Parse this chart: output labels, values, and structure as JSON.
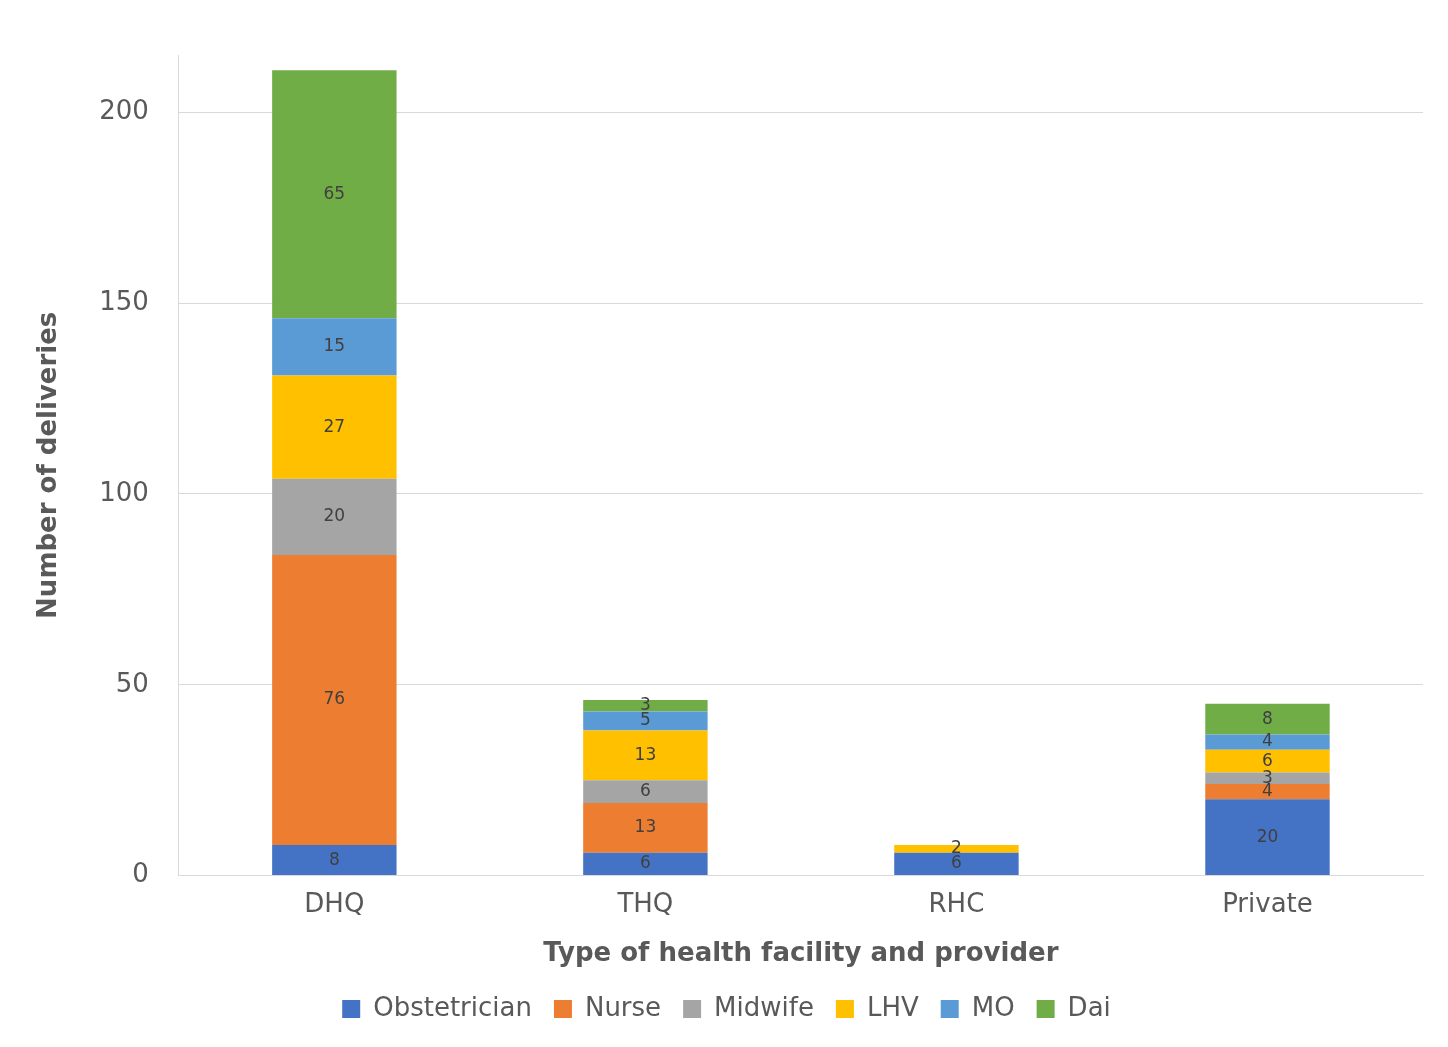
{
  "chart_data": {
    "type": "bar",
    "stacked": true,
    "xlabel": "Type of health facility and provider",
    "ylabel": "Number of deliveries",
    "categories": [
      "DHQ",
      "THQ",
      "RHC",
      "Private"
    ],
    "series": [
      {
        "name": "Obstetrician",
        "color": "#4472c4",
        "values": [
          8,
          6,
          6,
          20
        ]
      },
      {
        "name": "Nurse",
        "color": "#ed7d31",
        "values": [
          76,
          13,
          null,
          4
        ]
      },
      {
        "name": "Midwife",
        "color": "#a5a5a5",
        "values": [
          20,
          6,
          null,
          3
        ]
      },
      {
        "name": "LHV",
        "color": "#ffc000",
        "values": [
          27,
          13,
          2,
          6
        ]
      },
      {
        "name": "MO",
        "color": "#5b9bd5",
        "values": [
          15,
          5,
          null,
          4
        ]
      },
      {
        "name": "Dai",
        "color": "#70ad47",
        "values": [
          65,
          3,
          null,
          8
        ]
      }
    ],
    "ylim": [
      0,
      215
    ],
    "yticks": [
      0,
      50,
      100,
      150,
      200
    ],
    "grid": "y",
    "legend": "bottom",
    "data_labels": true
  }
}
